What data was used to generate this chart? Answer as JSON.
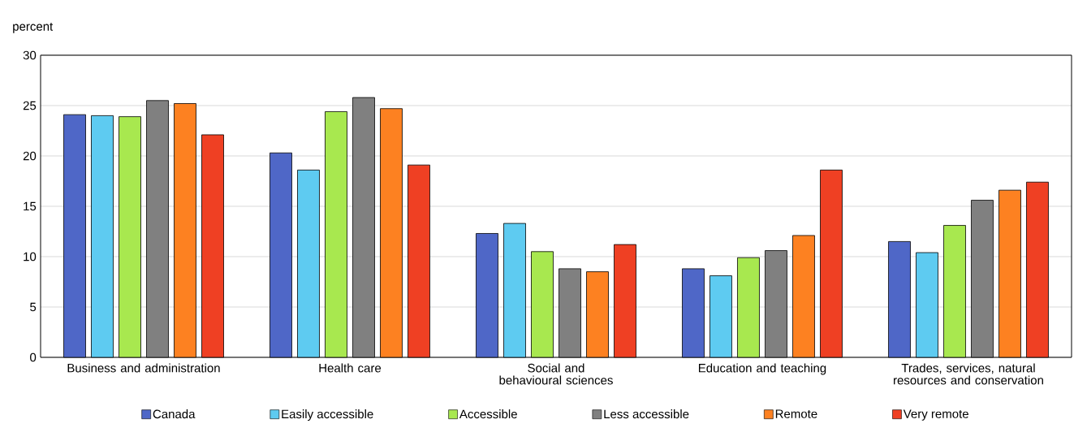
{
  "chart_data": {
    "type": "bar",
    "ylabel": "percent",
    "categories": [
      "Business and administration",
      "Health care",
      "Social and behavioural sciences",
      "Education and teaching",
      "Trades, services, natural resources and conservation"
    ],
    "series": [
      {
        "name": "Canada",
        "color": "#4f67c7",
        "values": [
          24.1,
          20.3,
          12.3,
          8.8,
          11.5
        ]
      },
      {
        "name": "Easily accessible",
        "color": "#5ecbf1",
        "values": [
          24.0,
          18.6,
          13.3,
          8.1,
          10.4
        ]
      },
      {
        "name": "Accessible",
        "color": "#a8e84f",
        "values": [
          23.9,
          24.4,
          10.5,
          9.9,
          13.1
        ]
      },
      {
        "name": "Less accessible",
        "color": "#808080",
        "values": [
          25.5,
          25.8,
          8.8,
          10.6,
          15.6
        ]
      },
      {
        "name": "Remote",
        "color": "#fd8121",
        "values": [
          25.2,
          24.7,
          8.5,
          12.1,
          16.6
        ]
      },
      {
        "name": "Very remote",
        "color": "#ef4023",
        "values": [
          22.1,
          19.1,
          11.2,
          18.6,
          17.4
        ]
      }
    ],
    "ylim": [
      0,
      30
    ],
    "yticks": [
      0,
      5,
      10,
      15,
      20,
      25,
      30
    ],
    "grid": "y",
    "legend": "bottom"
  }
}
